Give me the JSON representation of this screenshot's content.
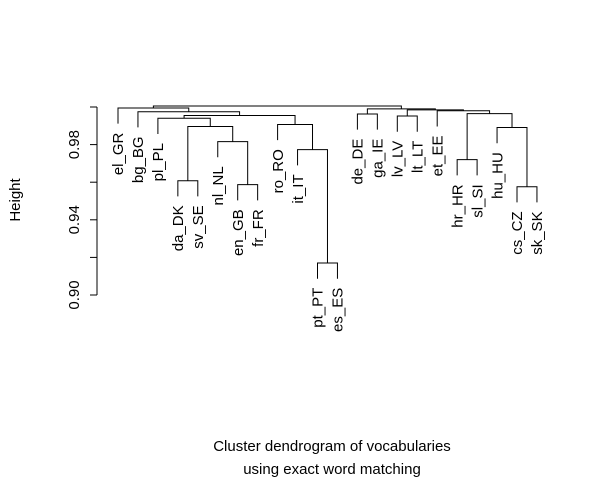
{
  "chart_data": {
    "type": "dendrogram",
    "xlabel": [
      "Cluster dendrogram of vocabularies",
      "using exact word matching"
    ],
    "ylabel": "Height",
    "labels": [
      "el_GR",
      "bg_BG",
      "pl_PL",
      "da_DK",
      "sv_SE",
      "nl_NL",
      "en_GB",
      "fr_FR",
      "ro_RO",
      "it_IT",
      "pt_PT",
      "es_ES",
      "de_DE",
      "ga_IE",
      "lv_LV",
      "lt_LT",
      "et_EE",
      "hr_HR",
      "sl_SI",
      "hu_HU",
      "cs_CZ",
      "sk_SK"
    ],
    "merge": [
      [
        -11,
        -12
      ],
      [
        -21,
        -22
      ],
      [
        -7,
        -8
      ],
      [
        -4,
        -5
      ],
      [
        -18,
        -19
      ],
      [
        -10,
        1
      ],
      [
        -6,
        3
      ],
      [
        -20,
        2
      ],
      [
        4,
        7
      ],
      [
        -9,
        6
      ],
      [
        -3,
        9
      ],
      [
        -15,
        -16
      ],
      [
        11,
        10
      ],
      [
        -13,
        -14
      ],
      [
        5,
        8
      ],
      [
        -2,
        13
      ],
      [
        -17,
        15
      ],
      [
        12,
        17
      ],
      [
        14,
        18
      ],
      [
        -1,
        16
      ],
      [
        20,
        19
      ]
    ],
    "height": [
      0.917,
      0.9576,
      0.9587,
      0.9608,
      0.972,
      0.9773,
      0.9816,
      0.9891,
      0.9896,
      0.9907,
      0.994,
      0.9952,
      0.9955,
      0.9963,
      0.9965,
      0.9975,
      0.998,
      0.9985,
      0.999,
      0.9995,
      1.0005
    ],
    "color": "#000000",
    "ylim": [
      0.9,
      1.0
    ],
    "yticks": [
      {
        "value": 0.9,
        "label": "0.90"
      },
      {
        "value": 0.94,
        "label": "0.94"
      },
      {
        "value": 0.98,
        "label": "0.98"
      }
    ],
    "yticks_unlabeled": [
      0.92,
      0.96,
      1.0
    ]
  }
}
